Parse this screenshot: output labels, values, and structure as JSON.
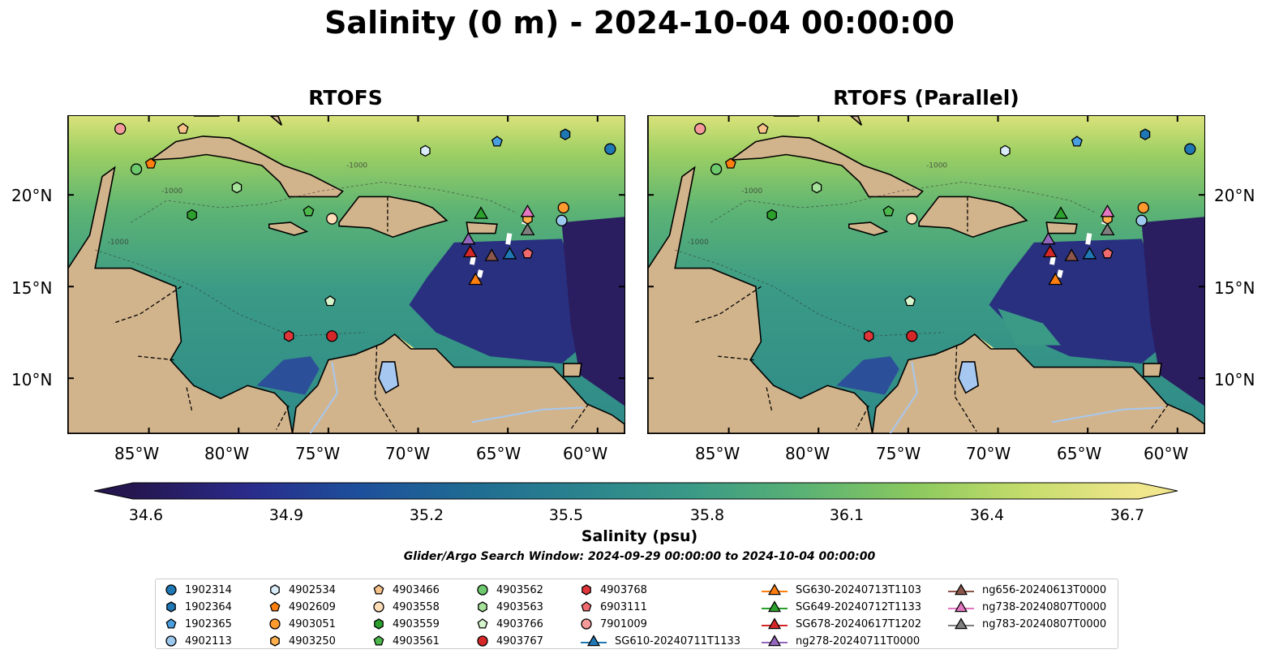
{
  "title": "Salinity (0 m) - 2024-10-04 00:00:00",
  "panels": [
    {
      "title": "RTOFS"
    },
    {
      "title": "RTOFS (Parallel)"
    }
  ],
  "axes": {
    "lon_ticks": [
      "85°W",
      "80°W",
      "75°W",
      "70°W",
      "65°W",
      "60°W"
    ],
    "lat_ticks": [
      "20°N",
      "15°N",
      "10°N"
    ],
    "lon_range": [
      -89.5,
      -58.5
    ],
    "lat_range": [
      7,
      24.3
    ]
  },
  "colorbar": {
    "label": "Salinity (psu)",
    "ticks": [
      "34.6",
      "34.9",
      "35.2",
      "35.5",
      "35.8",
      "36.1",
      "36.4",
      "36.7"
    ],
    "range": [
      34.6,
      36.7
    ],
    "extend": "both",
    "colormap": [
      "#25164f",
      "#2a2a8a",
      "#1d4f9c",
      "#1f6b93",
      "#2a838e",
      "#3a9a86",
      "#5ab274",
      "#8bc95e",
      "#c6dd6c",
      "#f0e68c"
    ]
  },
  "contour_label": "-1000",
  "search_window": "Glider/Argo Search Window: 2024-09-29 00:00:00 to 2024-10-04 00:00:00",
  "land_color": "#d2b48c",
  "lake_color": "#a6c8f0",
  "legend": {
    "columns": [
      [
        {
          "label": "1902314",
          "marker": "circle",
          "color": "#1f77b4"
        },
        {
          "label": "1902364",
          "marker": "hexagon",
          "color": "#1f77b4"
        },
        {
          "label": "1902365",
          "marker": "pentagon",
          "color": "#4a9fe0"
        },
        {
          "label": "4902113",
          "marker": "circle",
          "color": "#9dc8ee"
        }
      ],
      [
        {
          "label": "4902534",
          "marker": "hexagon",
          "color": "#d9ecf8"
        },
        {
          "label": "4902609",
          "marker": "pentagon",
          "color": "#ff7f0e"
        },
        {
          "label": "4903051",
          "marker": "circle",
          "color": "#ff9a2e"
        },
        {
          "label": "4903250",
          "marker": "hexagon",
          "color": "#ffb04d"
        }
      ],
      [
        {
          "label": "4903466",
          "marker": "pentagon",
          "color": "#f7c28a"
        },
        {
          "label": "4903558",
          "marker": "circle",
          "color": "#fddcb8"
        },
        {
          "label": "4903559",
          "marker": "hexagon",
          "color": "#2ca02c"
        },
        {
          "label": "4903561",
          "marker": "pentagon",
          "color": "#4cb84c"
        }
      ],
      [
        {
          "label": "4903562",
          "marker": "circle",
          "color": "#6cc96c"
        },
        {
          "label": "4903563",
          "marker": "hexagon",
          "color": "#a6e29a"
        },
        {
          "label": "4903766",
          "marker": "pentagon",
          "color": "#d6f5cc"
        },
        {
          "label": "4903767",
          "marker": "circle",
          "color": "#d62728"
        }
      ],
      [
        {
          "label": "4903768",
          "marker": "hexagon",
          "color": "#e0363a"
        },
        {
          "label": "6903111",
          "marker": "pentagon",
          "color": "#f06a6e"
        },
        {
          "label": "7901009",
          "marker": "circle",
          "color": "#f59a9a"
        },
        {
          "label": "SG610-20240711T1133",
          "marker": "triangle-line",
          "color": "#1f77b4"
        }
      ],
      [
        {
          "label": "SG630-20240713T1103",
          "marker": "triangle-line",
          "color": "#ff7f0e"
        },
        {
          "label": "SG649-20240712T1133",
          "marker": "triangle-line",
          "color": "#2ca02c"
        },
        {
          "label": "SG678-20240617T1202",
          "marker": "triangle-line",
          "color": "#d62728"
        },
        {
          "label": "ng278-20240711T0000",
          "marker": "triangle-line",
          "color": "#9467bd"
        }
      ],
      [
        {
          "label": "ng656-20240613T0000",
          "marker": "triangle-line",
          "color": "#8c564b"
        },
        {
          "label": "ng738-20240807T0000",
          "marker": "triangle-line",
          "color": "#e377c2"
        },
        {
          "label": "ng783-20240807T0000",
          "marker": "triangle-line",
          "color": "#7f7f7f"
        }
      ]
    ]
  },
  "argo_floats": [
    {
      "id": "1902314",
      "lon": -59.3,
      "lat": 22.5
    },
    {
      "id": "1902364",
      "lon": -61.8,
      "lat": 23.3
    },
    {
      "id": "1902365",
      "lon": -65.6,
      "lat": 22.9
    },
    {
      "id": "4902113",
      "lon": -62.0,
      "lat": 18.6
    },
    {
      "id": "4902534",
      "lon": -69.6,
      "lat": 22.4
    },
    {
      "id": "4902609",
      "lon": -84.9,
      "lat": 21.7
    },
    {
      "id": "4903051",
      "lon": -61.9,
      "lat": 19.3
    },
    {
      "id": "4903250",
      "lon": -63.9,
      "lat": 18.7
    },
    {
      "id": "4903466",
      "lon": -83.1,
      "lat": 23.6
    },
    {
      "id": "4903558",
      "lon": -74.8,
      "lat": 18.7
    },
    {
      "id": "4903559",
      "lon": -82.6,
      "lat": 18.9
    },
    {
      "id": "4903561",
      "lon": -76.1,
      "lat": 19.1
    },
    {
      "id": "4903562",
      "lon": -85.7,
      "lat": 21.4
    },
    {
      "id": "4903563",
      "lon": -80.1,
      "lat": 20.4
    },
    {
      "id": "4903766",
      "lon": -74.9,
      "lat": 14.2
    },
    {
      "id": "4903767",
      "lon": -74.8,
      "lat": 12.3
    },
    {
      "id": "4903768",
      "lon": -77.2,
      "lat": 12.3
    },
    {
      "id": "6903111",
      "lon": -63.9,
      "lat": 16.8
    },
    {
      "id": "7901009",
      "lon": -86.6,
      "lat": 23.6
    }
  ],
  "gliders": [
    {
      "id": "SG610-20240711T1133",
      "lon": -64.9,
      "lat": 16.8
    },
    {
      "id": "SG630-20240713T1103",
      "lon": -66.8,
      "lat": 15.4
    },
    {
      "id": "SG649-20240712T1133",
      "lon": -66.5,
      "lat": 19.0
    },
    {
      "id": "SG678-20240617T1202",
      "lon": -67.1,
      "lat": 16.9
    },
    {
      "id": "ng278-20240711T0000",
      "lon": -67.2,
      "lat": 17.6
    },
    {
      "id": "ng656-20240613T0000",
      "lon": -65.9,
      "lat": 16.7
    },
    {
      "id": "ng738-20240807T0000",
      "lon": -63.9,
      "lat": 19.1
    },
    {
      "id": "ng783-20240807T0000",
      "lon": -63.9,
      "lat": 18.1
    }
  ]
}
